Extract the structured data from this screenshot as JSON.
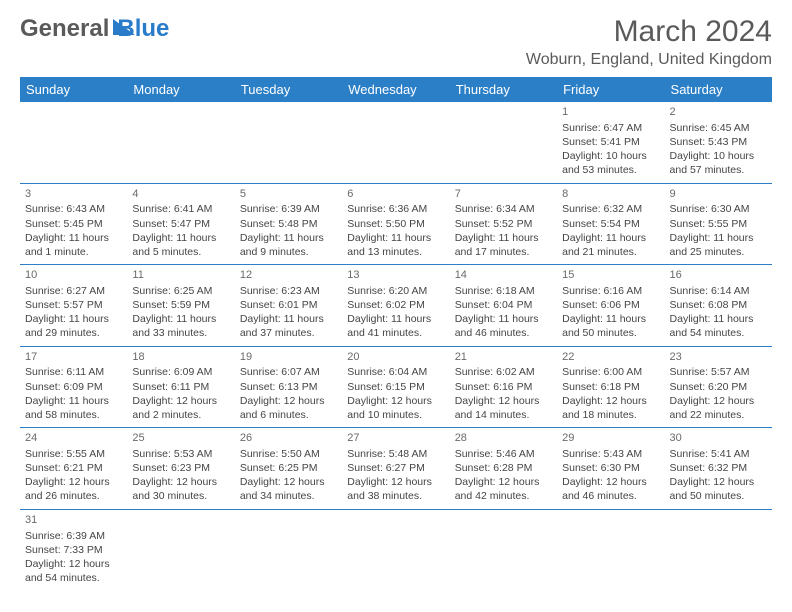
{
  "logo": {
    "part1": "General",
    "part2": "Blue"
  },
  "title": "March 2024",
  "location": "Woburn, England, United Kingdom",
  "colors": {
    "header_bg": "#2b7fc6",
    "header_text": "#ffffff",
    "border": "#2b7fc6",
    "logo_gray": "#5a5a5a",
    "logo_blue": "#2a7ccb",
    "cell_text": "#454545"
  },
  "daysOfWeek": [
    "Sunday",
    "Monday",
    "Tuesday",
    "Wednesday",
    "Thursday",
    "Friday",
    "Saturday"
  ],
  "startOffset": 5,
  "days": [
    {
      "n": 1,
      "sunrise": "6:47 AM",
      "sunset": "5:41 PM",
      "daylight": "10 hours and 53 minutes."
    },
    {
      "n": 2,
      "sunrise": "6:45 AM",
      "sunset": "5:43 PM",
      "daylight": "10 hours and 57 minutes."
    },
    {
      "n": 3,
      "sunrise": "6:43 AM",
      "sunset": "5:45 PM",
      "daylight": "11 hours and 1 minute."
    },
    {
      "n": 4,
      "sunrise": "6:41 AM",
      "sunset": "5:47 PM",
      "daylight": "11 hours and 5 minutes."
    },
    {
      "n": 5,
      "sunrise": "6:39 AM",
      "sunset": "5:48 PM",
      "daylight": "11 hours and 9 minutes."
    },
    {
      "n": 6,
      "sunrise": "6:36 AM",
      "sunset": "5:50 PM",
      "daylight": "11 hours and 13 minutes."
    },
    {
      "n": 7,
      "sunrise": "6:34 AM",
      "sunset": "5:52 PM",
      "daylight": "11 hours and 17 minutes."
    },
    {
      "n": 8,
      "sunrise": "6:32 AM",
      "sunset": "5:54 PM",
      "daylight": "11 hours and 21 minutes."
    },
    {
      "n": 9,
      "sunrise": "6:30 AM",
      "sunset": "5:55 PM",
      "daylight": "11 hours and 25 minutes."
    },
    {
      "n": 10,
      "sunrise": "6:27 AM",
      "sunset": "5:57 PM",
      "daylight": "11 hours and 29 minutes."
    },
    {
      "n": 11,
      "sunrise": "6:25 AM",
      "sunset": "5:59 PM",
      "daylight": "11 hours and 33 minutes."
    },
    {
      "n": 12,
      "sunrise": "6:23 AM",
      "sunset": "6:01 PM",
      "daylight": "11 hours and 37 minutes."
    },
    {
      "n": 13,
      "sunrise": "6:20 AM",
      "sunset": "6:02 PM",
      "daylight": "11 hours and 41 minutes."
    },
    {
      "n": 14,
      "sunrise": "6:18 AM",
      "sunset": "6:04 PM",
      "daylight": "11 hours and 46 minutes."
    },
    {
      "n": 15,
      "sunrise": "6:16 AM",
      "sunset": "6:06 PM",
      "daylight": "11 hours and 50 minutes."
    },
    {
      "n": 16,
      "sunrise": "6:14 AM",
      "sunset": "6:08 PM",
      "daylight": "11 hours and 54 minutes."
    },
    {
      "n": 17,
      "sunrise": "6:11 AM",
      "sunset": "6:09 PM",
      "daylight": "11 hours and 58 minutes."
    },
    {
      "n": 18,
      "sunrise": "6:09 AM",
      "sunset": "6:11 PM",
      "daylight": "12 hours and 2 minutes."
    },
    {
      "n": 19,
      "sunrise": "6:07 AM",
      "sunset": "6:13 PM",
      "daylight": "12 hours and 6 minutes."
    },
    {
      "n": 20,
      "sunrise": "6:04 AM",
      "sunset": "6:15 PM",
      "daylight": "12 hours and 10 minutes."
    },
    {
      "n": 21,
      "sunrise": "6:02 AM",
      "sunset": "6:16 PM",
      "daylight": "12 hours and 14 minutes."
    },
    {
      "n": 22,
      "sunrise": "6:00 AM",
      "sunset": "6:18 PM",
      "daylight": "12 hours and 18 minutes."
    },
    {
      "n": 23,
      "sunrise": "5:57 AM",
      "sunset": "6:20 PM",
      "daylight": "12 hours and 22 minutes."
    },
    {
      "n": 24,
      "sunrise": "5:55 AM",
      "sunset": "6:21 PM",
      "daylight": "12 hours and 26 minutes."
    },
    {
      "n": 25,
      "sunrise": "5:53 AM",
      "sunset": "6:23 PM",
      "daylight": "12 hours and 30 minutes."
    },
    {
      "n": 26,
      "sunrise": "5:50 AM",
      "sunset": "6:25 PM",
      "daylight": "12 hours and 34 minutes."
    },
    {
      "n": 27,
      "sunrise": "5:48 AM",
      "sunset": "6:27 PM",
      "daylight": "12 hours and 38 minutes."
    },
    {
      "n": 28,
      "sunrise": "5:46 AM",
      "sunset": "6:28 PM",
      "daylight": "12 hours and 42 minutes."
    },
    {
      "n": 29,
      "sunrise": "5:43 AM",
      "sunset": "6:30 PM",
      "daylight": "12 hours and 46 minutes."
    },
    {
      "n": 30,
      "sunrise": "5:41 AM",
      "sunset": "6:32 PM",
      "daylight": "12 hours and 50 minutes."
    },
    {
      "n": 31,
      "sunrise": "6:39 AM",
      "sunset": "7:33 PM",
      "daylight": "12 hours and 54 minutes."
    }
  ],
  "labels": {
    "sunrise": "Sunrise:",
    "sunset": "Sunset:",
    "daylight": "Daylight:"
  }
}
